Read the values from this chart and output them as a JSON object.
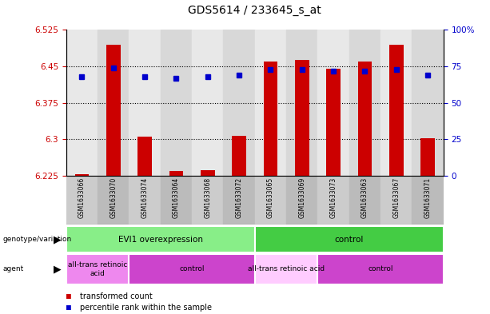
{
  "title": "GDS5614 / 233645_s_at",
  "samples": [
    "GSM1633066",
    "GSM1633070",
    "GSM1633074",
    "GSM1633064",
    "GSM1633068",
    "GSM1633072",
    "GSM1633065",
    "GSM1633069",
    "GSM1633073",
    "GSM1633063",
    "GSM1633067",
    "GSM1633071"
  ],
  "bar_values": [
    6.228,
    6.495,
    6.305,
    6.235,
    6.237,
    6.307,
    6.46,
    6.463,
    6.445,
    6.46,
    6.495,
    6.302
  ],
  "bar_base": 6.225,
  "percentile_values": [
    68,
    74,
    68,
    67,
    68,
    69,
    73,
    73,
    72,
    72,
    73,
    69
  ],
  "ylim_left": [
    6.225,
    6.525
  ],
  "ylim_right": [
    0,
    100
  ],
  "yticks_left": [
    6.225,
    6.3,
    6.375,
    6.45,
    6.525
  ],
  "yticks_right": [
    0,
    25,
    50,
    75,
    100
  ],
  "ytick_labels_left": [
    "6.225",
    "6.3",
    "6.375",
    "6.45",
    "6.525"
  ],
  "ytick_labels_right": [
    "0",
    "25",
    "50",
    "75",
    "100%"
  ],
  "bar_color": "#cc0000",
  "dot_color": "#0000cc",
  "title_fontsize": 10,
  "genotype_groups": [
    {
      "label": "EVI1 overexpression",
      "start": 0,
      "end": 6,
      "color": "#88ee88"
    },
    {
      "label": "control",
      "start": 6,
      "end": 12,
      "color": "#44cc44"
    }
  ],
  "agent_groups": [
    {
      "label": "all-trans retinoic\nacid",
      "start": 0,
      "end": 2,
      "color": "#ee88ee"
    },
    {
      "label": "control",
      "start": 2,
      "end": 6,
      "color": "#cc44cc"
    },
    {
      "label": "all-trans retinoic acid",
      "start": 6,
      "end": 8,
      "color": "#ffccff"
    },
    {
      "label": "control",
      "start": 8,
      "end": 12,
      "color": "#cc44cc"
    }
  ],
  "legend_items": [
    {
      "color": "#cc0000",
      "label": "transformed count"
    },
    {
      "color": "#0000cc",
      "label": "percentile rank within the sample"
    }
  ],
  "plot_bg": "#ffffff",
  "grid_lines": [
    6.3,
    6.375,
    6.45
  ],
  "sample_label_bg_even": "#cccccc",
  "sample_label_bg_odd": "#bbbbbb"
}
